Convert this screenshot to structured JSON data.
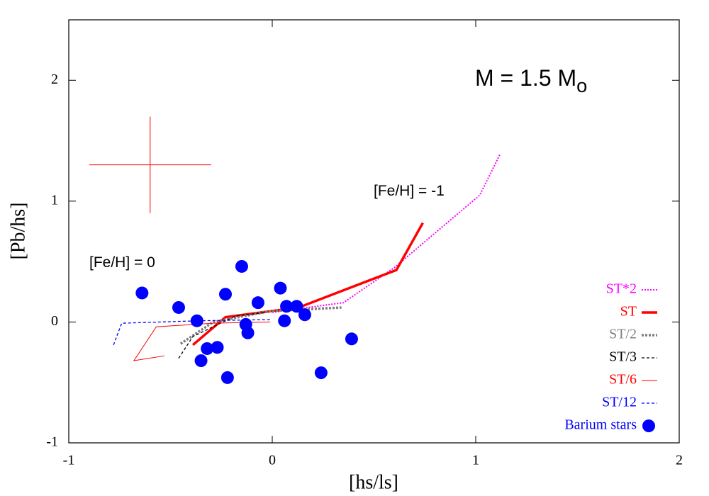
{
  "chart_data": {
    "type": "line",
    "x_label": "[hs/ls]",
    "y_label": "[Pb/hs]",
    "xlim": [
      -1,
      2
    ],
    "ylim": [
      -1,
      2.5
    ],
    "xticks": [
      -1,
      0,
      1,
      2
    ],
    "yticks": [
      -1,
      0,
      1,
      2
    ],
    "legend": "lower right",
    "annotations": [
      {
        "text": "M = 1.5 M",
        "sub": "o"
      },
      {
        "text": "[Fe/H] = -1"
      },
      {
        "text": "[Fe/H] = 0"
      }
    ],
    "error_bar": {
      "x": -0.6,
      "y": 1.3,
      "xerr": 0.3,
      "yerr": 0.4,
      "color": "#ff0000"
    },
    "series": [
      {
        "name": "ST*2",
        "color": "#ff00ff",
        "dash": "2,2",
        "width": 2,
        "x": [
          0.0,
          0.35,
          0.6,
          1.02,
          1.12
        ],
        "values": [
          0.08,
          0.16,
          0.45,
          1.05,
          1.39
        ]
      },
      {
        "name": "ST",
        "color": "#ff0000",
        "dash": "none",
        "width": 3.5,
        "x": [
          -0.39,
          -0.23,
          0.13,
          0.61,
          0.74
        ],
        "values": [
          -0.19,
          0.04,
          0.12,
          0.43,
          0.82
        ]
      },
      {
        "name": "ST/2",
        "color": "#808080",
        "dash": "3,2",
        "width": 3.5,
        "x": [
          -0.45,
          -0.29,
          -0.01,
          0.34
        ],
        "values": [
          -0.18,
          0.0,
          0.09,
          0.12
        ]
      },
      {
        "name": "ST/3",
        "color": "#000000",
        "dash": "4,3",
        "width": 1.3,
        "x": [
          -0.46,
          -0.39,
          -0.18,
          -0.03
        ],
        "values": [
          -0.3,
          -0.12,
          0.05,
          0.08
        ]
      },
      {
        "name": "ST/6",
        "color": "#ff0000",
        "dash": "none",
        "width": 1,
        "x": [
          -0.53,
          -0.68,
          -0.57,
          -0.29,
          -0.01
        ],
        "values": [
          -0.28,
          -0.32,
          -0.04,
          -0.01,
          0.0
        ]
      },
      {
        "name": "ST/12",
        "color": "#0000ff",
        "dash": "4,3",
        "width": 1.3,
        "x": [
          -0.78,
          -0.74,
          -0.36,
          -0.01
        ],
        "values": [
          -0.19,
          -0.01,
          0.01,
          0.02
        ]
      },
      {
        "name": "Barium stars",
        "color": "#0000ff",
        "type": "scatter",
        "x": [
          -0.64,
          -0.46,
          -0.37,
          -0.15,
          -0.23,
          -0.07,
          0.04,
          0.07,
          0.12,
          0.16,
          0.06,
          -0.13,
          -0.12,
          -0.27,
          -0.32,
          -0.35,
          -0.22,
          0.24,
          0.39
        ],
        "values": [
          0.24,
          0.12,
          0.01,
          0.46,
          0.23,
          0.16,
          0.28,
          0.13,
          0.13,
          0.06,
          0.01,
          -0.02,
          -0.09,
          -0.21,
          -0.22,
          -0.32,
          -0.46,
          -0.42,
          -0.14
        ]
      }
    ]
  }
}
